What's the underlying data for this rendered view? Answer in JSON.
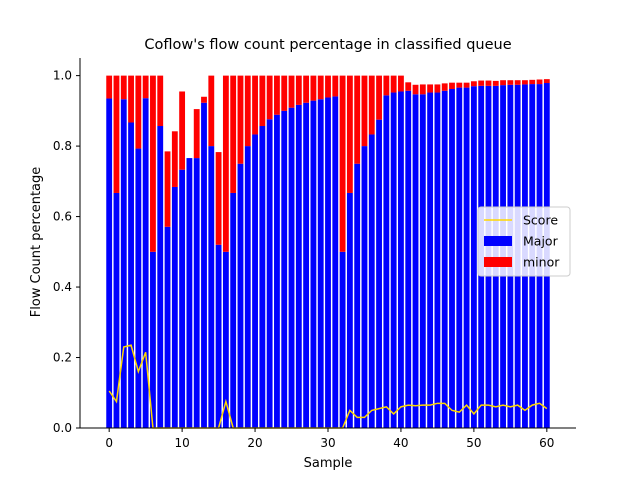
{
  "chart_data": {
    "type": "bar",
    "stacked": true,
    "title": "Coflow's flow count percentage in classified queue",
    "xlabel": "Sample",
    "ylabel": "Flow Count percentage",
    "xlim": [
      -4,
      64
    ],
    "ylim": [
      0,
      1.05
    ],
    "xticks": [
      0,
      10,
      20,
      30,
      40,
      50,
      60
    ],
    "yticks": [
      0.0,
      0.2,
      0.4,
      0.6,
      0.8,
      1.0
    ],
    "xtick_labels": [
      "0",
      "10",
      "20",
      "30",
      "40",
      "50",
      "60"
    ],
    "ytick_labels": [
      "0.0",
      "0.2",
      "0.4",
      "0.6",
      "0.8",
      "1.0"
    ],
    "grid": false,
    "legend_position": "center-right",
    "x": [
      0,
      1,
      2,
      3,
      4,
      5,
      6,
      7,
      8,
      9,
      10,
      11,
      12,
      13,
      14,
      15,
      16,
      17,
      18,
      19,
      20,
      21,
      22,
      23,
      24,
      25,
      26,
      27,
      28,
      29,
      30,
      31,
      32,
      33,
      34,
      35,
      36,
      37,
      38,
      39,
      40,
      41,
      42,
      43,
      44,
      45,
      46,
      47,
      48,
      49,
      50,
      51,
      52,
      53,
      54,
      55,
      56,
      57,
      58,
      59,
      60
    ],
    "series": [
      {
        "name": "Major",
        "color": "#0000ff",
        "values": [
          0.935,
          0.667,
          0.933,
          0.867,
          0.793,
          0.936,
          0.5,
          0.857,
          0.571,
          0.684,
          0.733,
          0.766,
          0.766,
          0.923,
          0.8,
          0.52,
          0.5,
          0.667,
          0.75,
          0.8,
          0.833,
          0.857,
          0.876,
          0.889,
          0.9,
          0.909,
          0.917,
          0.923,
          0.929,
          0.933,
          0.938,
          0.941,
          0.5,
          0.667,
          0.75,
          0.8,
          0.833,
          0.875,
          0.944,
          0.952,
          0.955,
          0.957,
          0.947,
          0.947,
          0.952,
          0.952,
          0.957,
          0.962,
          0.966,
          0.966,
          0.97,
          0.971,
          0.971,
          0.971,
          0.973,
          0.974,
          0.974,
          0.975,
          0.976,
          0.976,
          0.979
        ]
      },
      {
        "name": "minor",
        "color": "#ff0000",
        "values": [
          0.065,
          0.333,
          0.067,
          0.133,
          0.207,
          0.064,
          0.5,
          0.143,
          0.214,
          0.158,
          0.222,
          0.0,
          0.139,
          0.017,
          0.2,
          0.263,
          0.5,
          0.333,
          0.25,
          0.2,
          0.167,
          0.143,
          0.124,
          0.111,
          0.1,
          0.091,
          0.083,
          0.077,
          0.071,
          0.067,
          0.062,
          0.059,
          0.5,
          0.333,
          0.25,
          0.2,
          0.167,
          0.125,
          0.056,
          0.048,
          0.045,
          0.024,
          0.027,
          0.028,
          0.023,
          0.023,
          0.021,
          0.018,
          0.014,
          0.014,
          0.014,
          0.015,
          0.015,
          0.014,
          0.014,
          0.013,
          0.013,
          0.012,
          0.012,
          0.013,
          0.011
        ]
      },
      {
        "name": "Score",
        "type": "line",
        "color": "#ffd700",
        "values": [
          0.105,
          0.075,
          0.23,
          0.235,
          0.16,
          0.215,
          0.0,
          0.0,
          0.0,
          0.0,
          0.0,
          0.0,
          0.0,
          0.0,
          0.0,
          0.0,
          0.075,
          0.0,
          0.0,
          0.0,
          0.0,
          0.0,
          0.0,
          0.0,
          0.0,
          0.0,
          0.0,
          0.0,
          0.0,
          0.0,
          0.0,
          0.0,
          0.0,
          0.05,
          0.03,
          0.03,
          0.05,
          0.055,
          0.06,
          0.04,
          0.06,
          0.065,
          0.063,
          0.065,
          0.065,
          0.07,
          0.07,
          0.05,
          0.045,
          0.065,
          0.04,
          0.065,
          0.065,
          0.06,
          0.065,
          0.06,
          0.065,
          0.05,
          0.065,
          0.07,
          0.055
        ]
      }
    ]
  }
}
